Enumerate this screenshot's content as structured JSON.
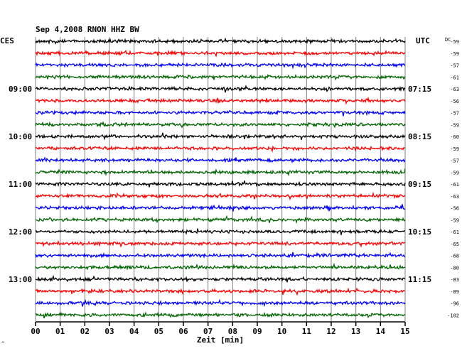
{
  "chart_data": {
    "type": "line",
    "title": "Sep 4,2008   RNON HHZ BW",
    "left_label": "CES",
    "right_label": "UTC",
    "dc_label": "DC",
    "xlabel": "Zeit [min]",
    "x_ticks": [
      "00",
      "01",
      "02",
      "03",
      "04",
      "05",
      "06",
      "07",
      "08",
      "09",
      "10",
      "11",
      "12",
      "13",
      "14",
      "15"
    ],
    "xlim": [
      0,
      15
    ],
    "left_hour_labels": [
      {
        "trace": 4,
        "label": "09:00"
      },
      {
        "trace": 8,
        "label": "10:00"
      },
      {
        "trace": 12,
        "label": "11:00"
      },
      {
        "trace": 16,
        "label": "12:00"
      },
      {
        "trace": 20,
        "label": "13:00"
      }
    ],
    "right_hour_labels": [
      {
        "trace": 4,
        "label": "07:15"
      },
      {
        "trace": 8,
        "label": "08:15"
      },
      {
        "trace": 12,
        "label": "09:15"
      },
      {
        "trace": 16,
        "label": "10:15"
      },
      {
        "trace": 20,
        "label": "11:15"
      }
    ],
    "trace_colors": [
      "#000000",
      "#ff0000",
      "#0000ff",
      "#006400"
    ],
    "dc_offsets": [
      -59,
      -59,
      -57,
      -61,
      -63,
      -56,
      -57,
      -59,
      -60,
      -59,
      -57,
      -59,
      -61,
      -63,
      -56,
      -59,
      -61,
      -65,
      -68,
      -80,
      -83,
      -89,
      -96,
      -102
    ],
    "corner_mark": "^"
  }
}
